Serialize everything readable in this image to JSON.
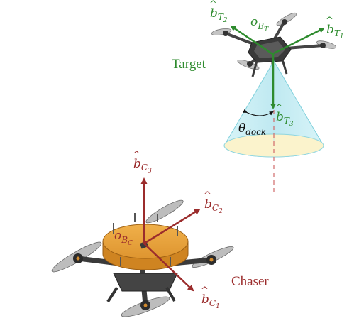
{
  "colors": {
    "target_green": "#2e8b2e",
    "chaser_red": "#9b2c2c",
    "cone_fill": "#c9eef4",
    "cone_base": "#fbf3cc",
    "disk_top": "#e9a23a",
    "disk_side": "#c97e1d",
    "frame_dark": "#3a3a3a",
    "prop_grey": "#b9b9b9"
  },
  "target": {
    "name": "Target",
    "origin": {
      "base": "o",
      "sub": "B",
      "subsub": "T"
    },
    "axis1": {
      "hat": "b",
      "sub": "T",
      "subsub": "1"
    },
    "axis2": {
      "hat": "b",
      "sub": "T",
      "subsub": "2"
    },
    "axis3": {
      "hat": "b",
      "sub": "T",
      "subsub": "3"
    },
    "angle": {
      "symbol": "θ",
      "sub": "dock"
    }
  },
  "chaser": {
    "name": "Chaser",
    "origin": {
      "base": "o",
      "sub": "B",
      "subsub": "C"
    },
    "axis1": {
      "hat": "b",
      "sub": "C",
      "subsub": "1"
    },
    "axis2": {
      "hat": "b",
      "sub": "C",
      "subsub": "2"
    },
    "axis3": {
      "hat": "b",
      "sub": "C",
      "subsub": "3"
    }
  }
}
